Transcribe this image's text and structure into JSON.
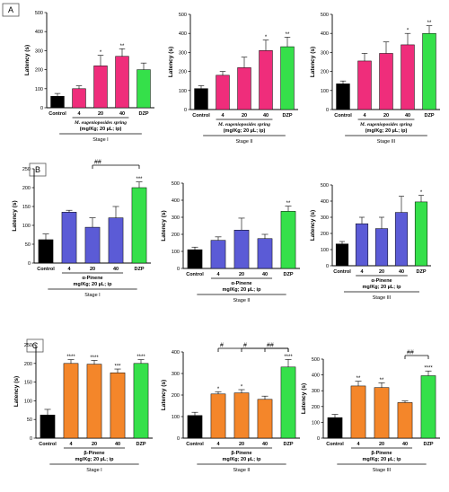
{
  "panel_labels": [
    "A",
    "B",
    "C"
  ],
  "chart_data": [
    {
      "id": "A1",
      "type": "bar",
      "panel": "A",
      "categories": [
        "Control",
        "4",
        "20",
        "40",
        "DZP"
      ],
      "values": [
        60,
        100,
        220,
        270,
        200
      ],
      "errors": [
        15,
        15,
        55,
        40,
        35
      ],
      "stars": [
        "",
        "",
        "*",
        "**",
        ""
      ],
      "ylabel": "Latency (s)",
      "ylim": [
        0,
        500
      ],
      "yticks": [
        "0",
        "100",
        "200",
        "300",
        "400",
        "500"
      ],
      "species": "M. eugenioposides spring",
      "dose": "(mg/Kg; 20 µL; ip)",
      "stage": "Stage I"
    },
    {
      "id": "A2",
      "type": "bar",
      "panel": "A",
      "categories": [
        "Control",
        "4",
        "20",
        "40",
        "DZP"
      ],
      "values": [
        110,
        180,
        220,
        310,
        330
      ],
      "errors": [
        15,
        20,
        55,
        55,
        50
      ],
      "stars": [
        "",
        "",
        "",
        "*",
        "**"
      ],
      "ylabel": "Latency (s)",
      "ylim": [
        0,
        500
      ],
      "yticks": [
        "0",
        "100",
        "200",
        "300",
        "400",
        "500"
      ],
      "species": "M. eugenioposides spring",
      "dose": "(mg/Kg; 20 µL; ip)",
      "stage": "Stage II"
    },
    {
      "id": "A3",
      "type": "bar",
      "panel": "A",
      "categories": [
        "Control",
        "4",
        "20",
        "40",
        "DZP"
      ],
      "values": [
        135,
        255,
        295,
        340,
        400
      ],
      "errors": [
        15,
        40,
        60,
        60,
        40
      ],
      "stars": [
        "",
        "",
        "",
        "*",
        "**"
      ],
      "ylabel": "Latency (s)",
      "ylim": [
        0,
        500
      ],
      "yticks": [
        "0",
        "100",
        "200",
        "300",
        "400",
        "500"
      ],
      "species": "M. eugenioposides spring",
      "dose": "(mg/Kg; 20 µL; ip)",
      "stage": "Stage III"
    },
    {
      "id": "B1",
      "type": "bar",
      "panel": "B",
      "categories": [
        "Control",
        "4",
        "20",
        "40",
        "DZP"
      ],
      "values": [
        62,
        135,
        95,
        120,
        200
      ],
      "errors": [
        15,
        5,
        25,
        30,
        15
      ],
      "stars": [
        "",
        "",
        "",
        "",
        "***"
      ],
      "ylabel": "Latency (s)",
      "ylim": [
        0,
        250
      ],
      "yticks": [
        "0",
        "50",
        "100",
        "150",
        "200",
        "250"
      ],
      "species": "α-Pinene",
      "dose": "mg/Kg; 20 µL; ip",
      "stage": "Stage I",
      "brackets": [
        {
          "from": 2,
          "to": 4,
          "label": "##"
        }
      ]
    },
    {
      "id": "B2",
      "type": "bar",
      "panel": "B",
      "categories": [
        "Control",
        "4",
        "20",
        "40",
        "DZP"
      ],
      "values": [
        110,
        165,
        225,
        175,
        335
      ],
      "errors": [
        15,
        20,
        70,
        25,
        30
      ],
      "stars": [
        "",
        "",
        "",
        "",
        "**"
      ],
      "ylabel": "Latency (s)",
      "ylim": [
        0,
        500
      ],
      "yticks": [
        "0",
        "100",
        "200",
        "300",
        "400",
        "500"
      ],
      "species": "α-Pinene",
      "dose": "mg/Kg; 20 µL; ip",
      "stage": "Stage II"
    },
    {
      "id": "B3",
      "type": "bar",
      "panel": "B",
      "categories": [
        "Control",
        "4",
        "20",
        "40",
        "DZP"
      ],
      "values": [
        135,
        260,
        230,
        330,
        395
      ],
      "errors": [
        15,
        40,
        70,
        100,
        40
      ],
      "stars": [
        "",
        "",
        "",
        "",
        "*"
      ],
      "ylabel": "Latency (s)",
      "ylim": [
        0,
        500
      ],
      "yticks": [
        "0",
        "100",
        "200",
        "300",
        "400",
        "500"
      ],
      "species": "α-Pinene",
      "dose": "mg/Kg; 20 µL; ip",
      "stage": "Stage III"
    },
    {
      "id": "C1",
      "type": "bar",
      "panel": "C",
      "categories": [
        "Control",
        "4",
        "20",
        "40",
        "DZP"
      ],
      "values": [
        62,
        200,
        198,
        175,
        200
      ],
      "errors": [
        15,
        10,
        10,
        10,
        10
      ],
      "stars": [
        "",
        "****",
        "****",
        "***",
        "****"
      ],
      "ylabel": "Latency (s)",
      "ylim": [
        0,
        250
      ],
      "yticks": [
        "0",
        "50",
        "100",
        "150",
        "200",
        "250"
      ],
      "species": "β-Pinene",
      "dose": "mg/Kg; 20 µL; ip",
      "stage": "Stage I"
    },
    {
      "id": "C2",
      "type": "bar",
      "panel": "C",
      "categories": [
        "Control",
        "4",
        "20",
        "40",
        "DZP"
      ],
      "values": [
        105,
        205,
        210,
        180,
        330
      ],
      "errors": [
        15,
        10,
        15,
        15,
        35
      ],
      "stars": [
        "",
        "*",
        "*",
        "",
        "****"
      ],
      "ylabel": "Latency (s)",
      "ylim": [
        0,
        400
      ],
      "yticks": [
        "0",
        "100",
        "200",
        "300",
        "400"
      ],
      "species": "β-Pinene",
      "dose": "mg/Kg; 20 µL; ip",
      "stage": "Stage II",
      "brackets": [
        {
          "from": 1,
          "to": 4,
          "label": "#"
        },
        {
          "from": 2,
          "to": 4,
          "label": "#"
        },
        {
          "from": 3,
          "to": 4,
          "label": "##"
        }
      ]
    },
    {
      "id": "C3",
      "type": "bar",
      "panel": "C",
      "categories": [
        "Control",
        "4",
        "20",
        "40",
        "DZP"
      ],
      "values": [
        130,
        330,
        320,
        225,
        395
      ],
      "errors": [
        20,
        30,
        30,
        10,
        30
      ],
      "stars": [
        "",
        "**",
        "**",
        "",
        "****"
      ],
      "ylabel": "Latency (s)",
      "ylim": [
        0,
        500
      ],
      "yticks": [
        "0",
        "100",
        "200",
        "300",
        "400",
        "500"
      ],
      "species": "β-Pinene",
      "dose": "mg/Kg; 20 µL; ip",
      "stage": "Stage III",
      "brackets": [
        {
          "from": 3,
          "to": 4,
          "label": "##"
        }
      ]
    }
  ],
  "colors": {
    "control": "#000000",
    "A": "#ef2d7b",
    "B": "#5b5bd6",
    "C": "#f4862a",
    "dzp": "#35e04a"
  }
}
